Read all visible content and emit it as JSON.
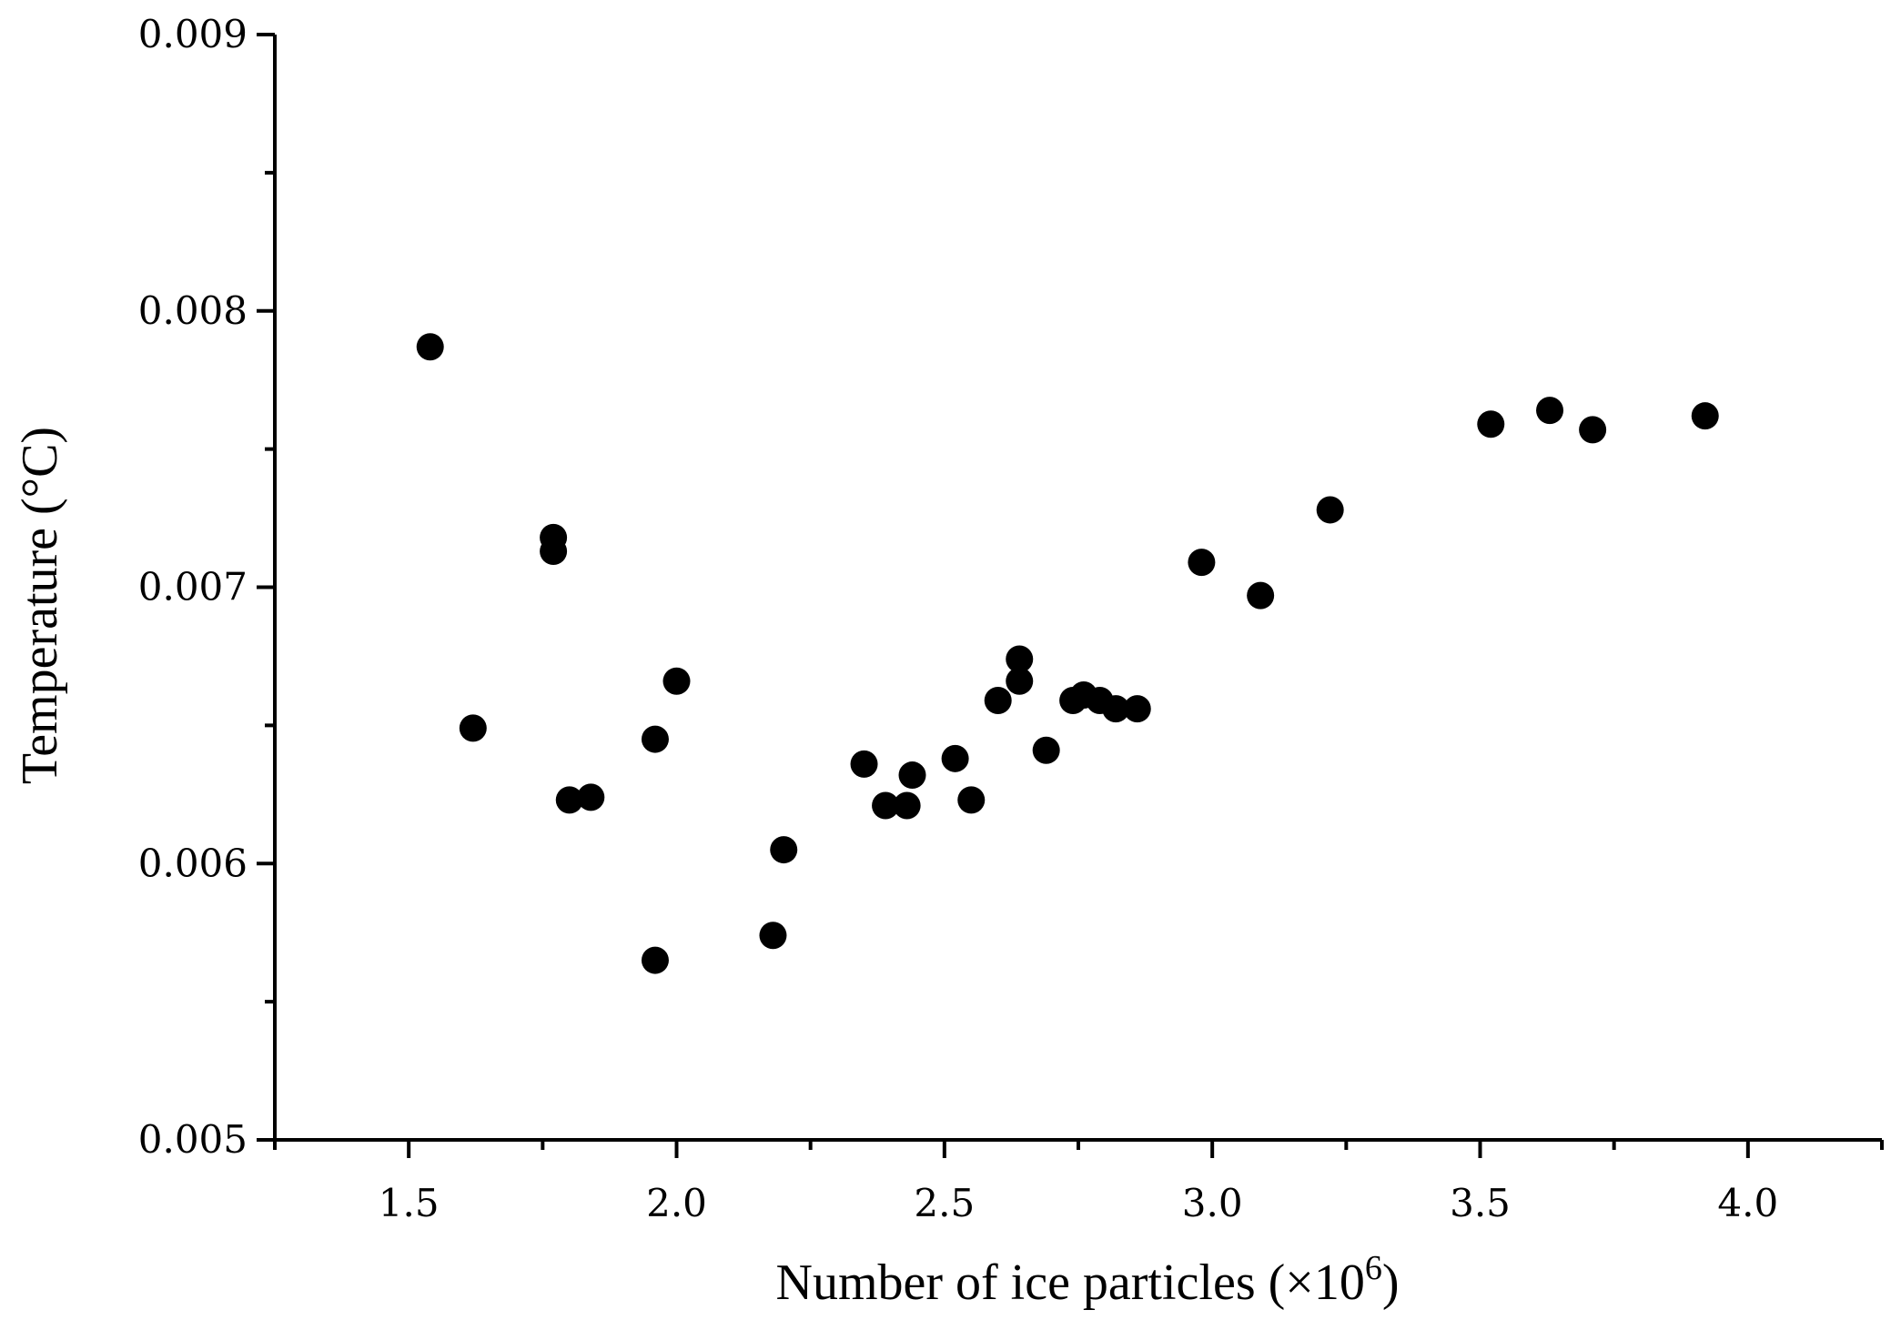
{
  "chart_data": {
    "type": "scatter",
    "title": "",
    "xlabel": "Number of ice particles (×10⁶)",
    "xlabel_main": "Number of ice particles (×10",
    "xlabel_sup": "6",
    "xlabel_close": ")",
    "ylabel": "Temperature (°C)",
    "xlim": [
      1.25,
      4.25
    ],
    "ylim": [
      0.005,
      0.009
    ],
    "xticks": [
      1.5,
      2.0,
      2.5,
      3.0,
      3.5,
      4.0
    ],
    "xtick_labels": [
      "1.5",
      "2.0",
      "2.5",
      "3.0",
      "3.5",
      "4.0"
    ],
    "yticks": [
      0.005,
      0.006,
      0.007,
      0.008,
      0.009
    ],
    "ytick_labels": [
      "0.005",
      "0.006",
      "0.007",
      "0.008",
      "0.009"
    ],
    "grid": false,
    "marker_color": "#000000",
    "series": [
      {
        "points": [
          [
            1.54,
            0.00787
          ],
          [
            1.62,
            0.00649
          ],
          [
            1.77,
            0.00718
          ],
          [
            1.77,
            0.00713
          ],
          [
            1.8,
            0.00623
          ],
          [
            1.84,
            0.00624
          ],
          [
            1.96,
            0.00645
          ],
          [
            1.96,
            0.00565
          ],
          [
            2.0,
            0.00666
          ],
          [
            2.18,
            0.00574
          ],
          [
            2.2,
            0.00605
          ],
          [
            2.35,
            0.00636
          ],
          [
            2.39,
            0.00621
          ],
          [
            2.43,
            0.00621
          ],
          [
            2.44,
            0.00632
          ],
          [
            2.52,
            0.00638
          ],
          [
            2.55,
            0.00623
          ],
          [
            2.6,
            0.00659
          ],
          [
            2.64,
            0.00666
          ],
          [
            2.64,
            0.00674
          ],
          [
            2.69,
            0.00641
          ],
          [
            2.74,
            0.00659
          ],
          [
            2.76,
            0.00661
          ],
          [
            2.79,
            0.00659
          ],
          [
            2.82,
            0.00656
          ],
          [
            2.86,
            0.00656
          ],
          [
            2.98,
            0.00709
          ],
          [
            3.09,
            0.00697
          ],
          [
            3.22,
            0.00728
          ],
          [
            3.52,
            0.00759
          ],
          [
            3.63,
            0.00764
          ],
          [
            3.71,
            0.00757
          ],
          [
            3.92,
            0.00762
          ]
        ]
      }
    ]
  }
}
